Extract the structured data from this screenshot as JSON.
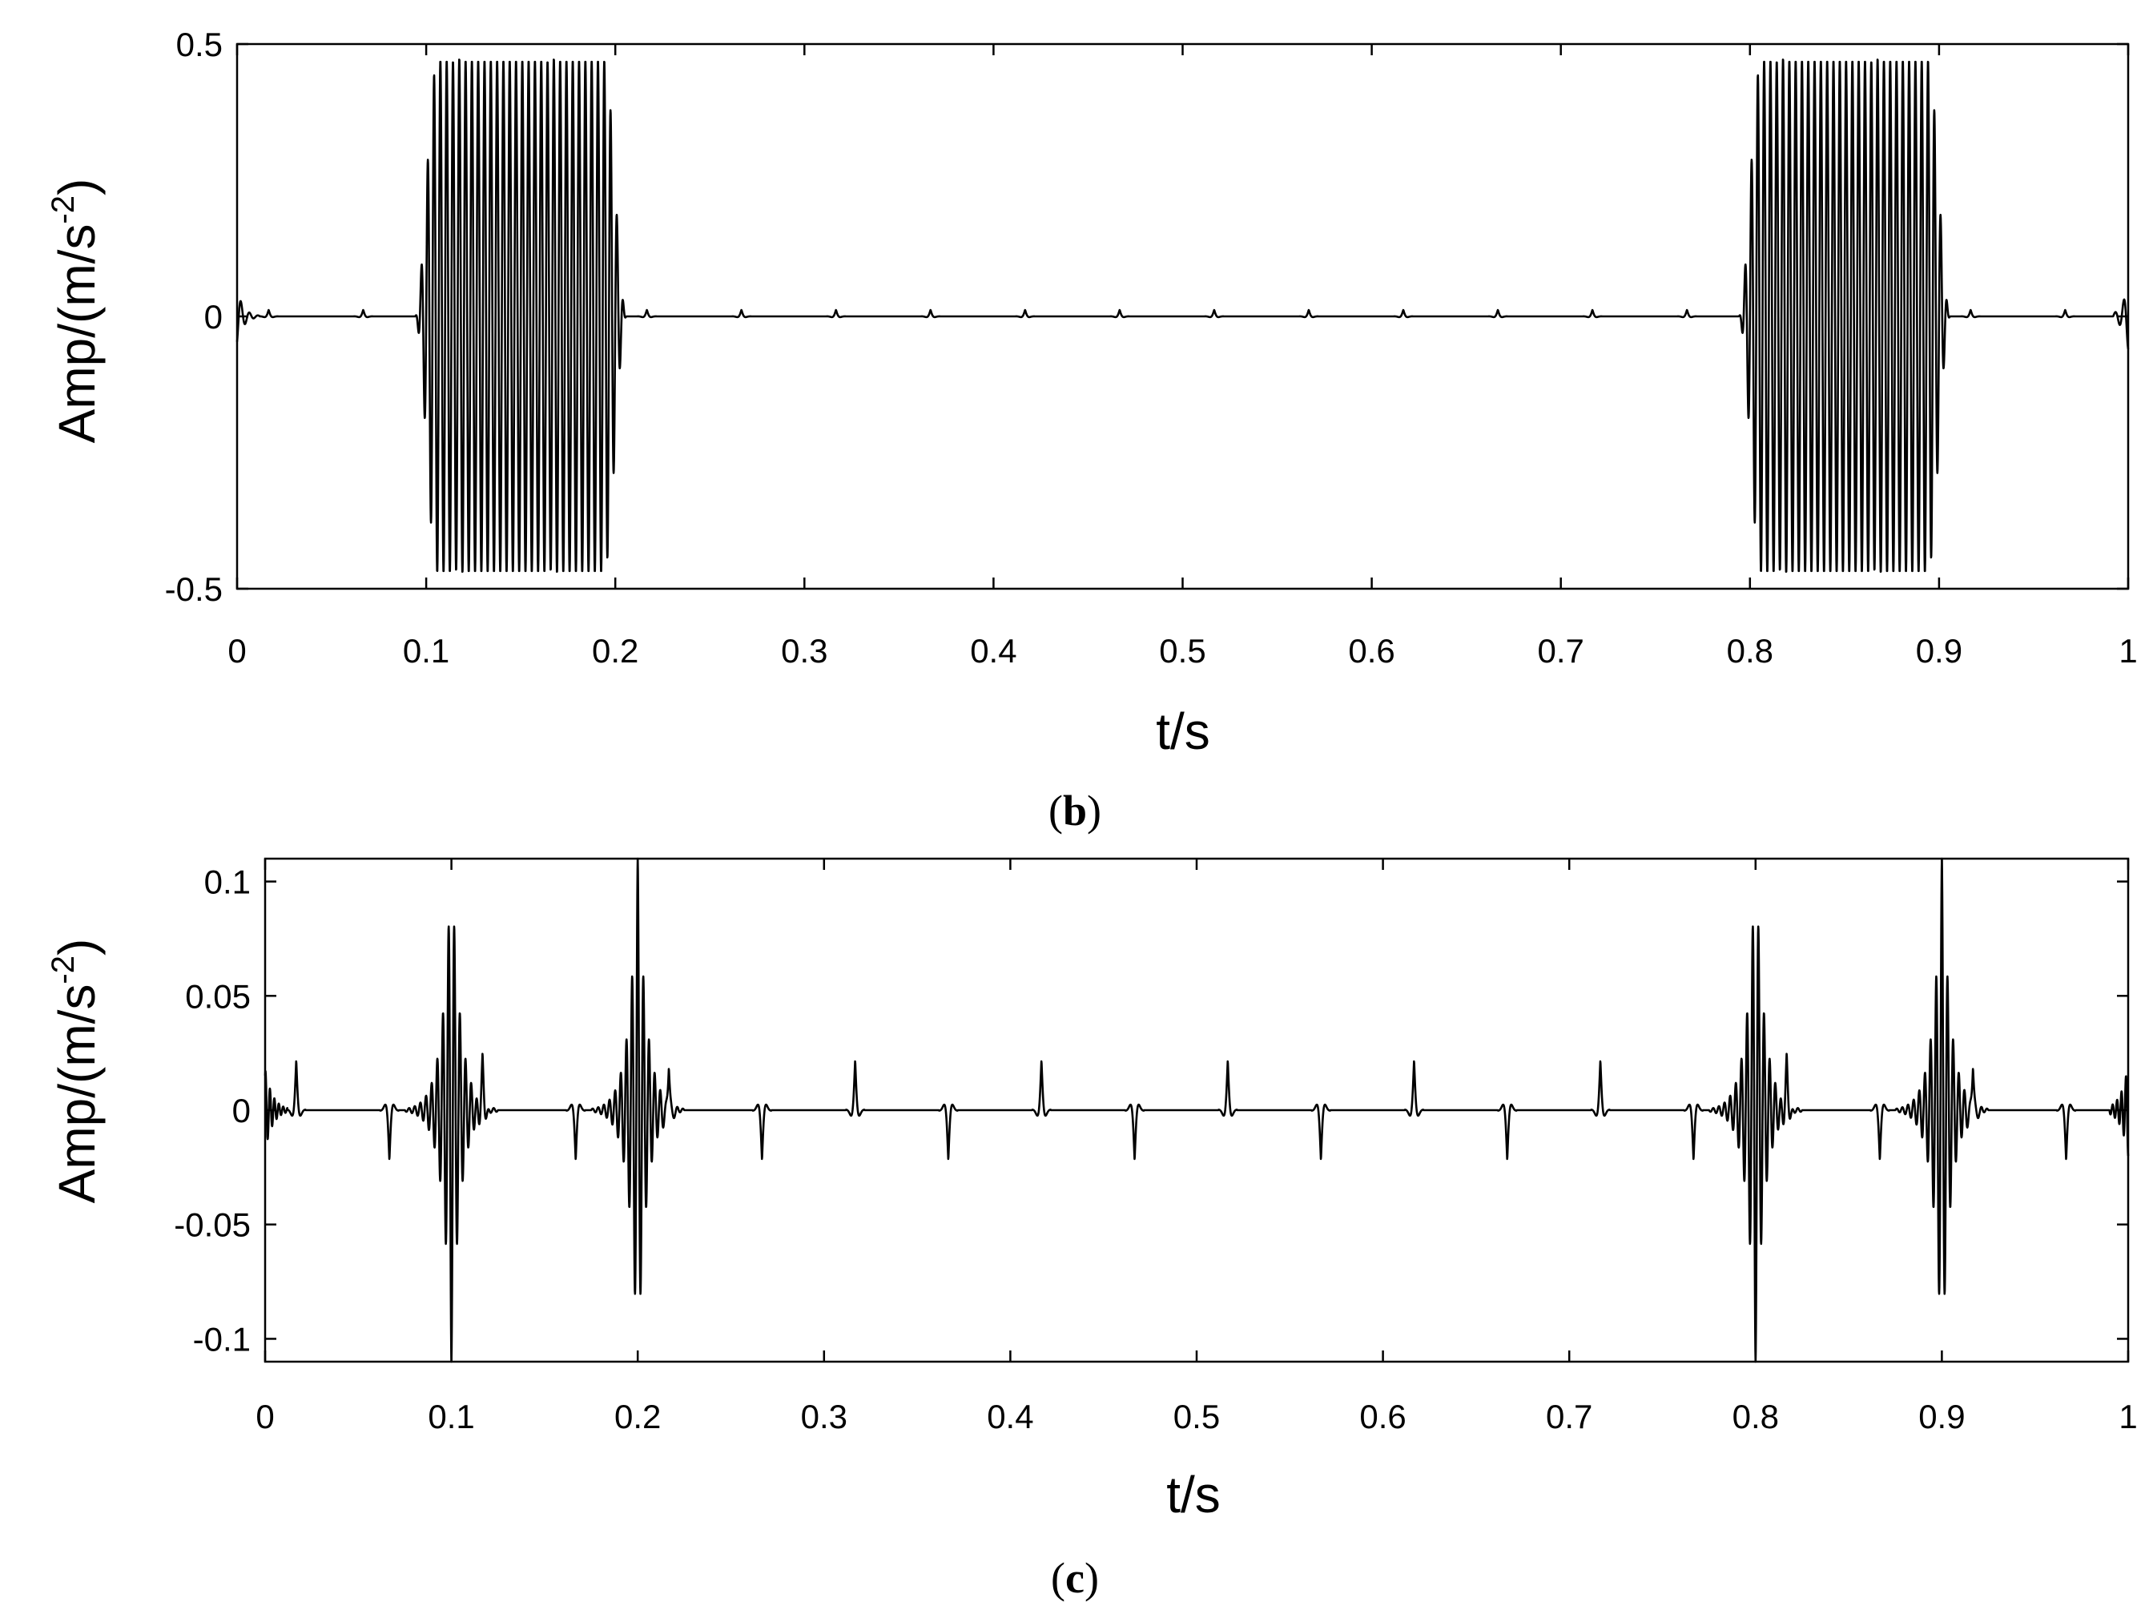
{
  "chart_data": [
    {
      "type": "line",
      "panel_label": {
        "open": "(",
        "letter": "b",
        "close": ")"
      },
      "xlabel": "t/s",
      "ylabel": {
        "base": "Amp/(m/s",
        "sup": "-2",
        "tail": ")"
      },
      "xlim": [
        0,
        1
      ],
      "ylim": [
        -0.5,
        0.5
      ],
      "x_ticks": [
        0,
        0.1,
        0.2,
        0.3,
        0.4,
        0.5,
        0.6,
        0.7,
        0.8,
        0.9,
        1
      ],
      "x_tick_labels": [
        "0",
        "0.1",
        "0.2",
        "0.3",
        "0.4",
        "0.5",
        "0.6",
        "0.7",
        "0.8",
        "0.9",
        "1"
      ],
      "y_ticks": [
        -0.5,
        0,
        0.5
      ],
      "y_tick_labels": [
        "-0.5",
        "0",
        "0.5"
      ],
      "grid": false,
      "series": [
        {
          "color": "#000000",
          "signal": {
            "duration": 1.0,
            "bursts": [
              {
                "start": 0.1,
                "end": 0.2,
                "amplitude": 0.47,
                "frequency_hz": 300
              },
              {
                "start": 0.8,
                "end": 0.9,
                "amplitude": 0.47,
                "frequency_hz": 300
              }
            ],
            "impulses": {
              "period": 0.05,
              "offset": 0.0167,
              "amplitude": 0.02
            }
          }
        }
      ]
    },
    {
      "type": "line",
      "panel_label": {
        "open": "(",
        "letter": "c",
        "close": ")"
      },
      "xlabel": "t/s",
      "ylabel": {
        "base": "Amp/(m/s",
        "sup": "-2",
        "tail": ")"
      },
      "xlim": [
        0,
        1
      ],
      "ylim": [
        -0.11,
        0.11
      ],
      "x_ticks": [
        0,
        0.1,
        0.2,
        0.3,
        0.4,
        0.5,
        0.6,
        0.7,
        0.8,
        0.9,
        1
      ],
      "x_tick_labels": [
        "0",
        "0.1",
        "0.2",
        "0.3",
        "0.4",
        "0.5",
        "0.6",
        "0.7",
        "0.8",
        "0.9",
        "1"
      ],
      "y_ticks": [
        -0.1,
        -0.05,
        0,
        0.05,
        0.1
      ],
      "y_tick_labels": [
        "-0.1",
        "-0.05",
        "0",
        "0.05",
        "0.1"
      ],
      "grid": false,
      "series": [
        {
          "color": "#000000",
          "signal": {
            "duration": 1.0,
            "transients": [
              {
                "center": 0.1,
                "peak": 0.11,
                "sign": -1
              },
              {
                "center": 0.2,
                "peak": 0.11,
                "sign": 1
              },
              {
                "center": 0.8,
                "peak": 0.11,
                "sign": -1
              },
              {
                "center": 0.9,
                "peak": 0.11,
                "sign": 1
              }
            ],
            "impulses": {
              "period": 0.05,
              "offset": 0.0167,
              "amplitude": 0.022
            }
          }
        }
      ]
    }
  ]
}
